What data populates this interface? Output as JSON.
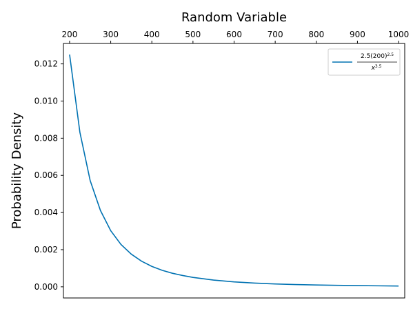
{
  "chart_data": {
    "type": "line",
    "xlabel": "Random Variable",
    "ylabel": "Probability Density",
    "xlabel_position": "top",
    "xlim": [
      185,
      1015
    ],
    "ylim": [
      -0.0006,
      0.0131
    ],
    "xticks": [
      200,
      300,
      400,
      500,
      600,
      700,
      800,
      900,
      1000
    ],
    "xtick_labels": [
      "200",
      "300",
      "400",
      "500",
      "600",
      "700",
      "800",
      "900",
      "1000"
    ],
    "yticks": [
      0.0,
      0.002,
      0.004,
      0.006,
      0.008,
      0.01,
      0.012
    ],
    "ytick_labels": [
      "0.000",
      "0.002",
      "0.004",
      "0.006",
      "0.008",
      "0.010",
      "0.012"
    ],
    "grid": false,
    "legend_placement": "top-right",
    "series": [
      {
        "name_parts": {
          "num_base": "2.5(200)",
          "num_exp": "2.5",
          "den_base": "x",
          "den_exp": "3.5"
        },
        "color": "#0072B2",
        "x": [
          200,
          225,
          250,
          275,
          300,
          325,
          350,
          375,
          400,
          425,
          450,
          475,
          500,
          550,
          600,
          650,
          700,
          750,
          800,
          850,
          900,
          950,
          1000
        ],
        "values": [
          0.0125,
          0.00832,
          0.00572,
          0.00411,
          0.00302,
          0.00228,
          0.00176,
          0.00138,
          0.0011,
          0.00089,
          0.00073,
          0.00061,
          0.000506,
          0.000362,
          0.000267,
          0.000201,
          0.000155,
          0.000121,
          9.77e-05,
          7.94e-05,
          6.53e-05,
          5.42e-05,
          4.47e-05
        ]
      }
    ]
  }
}
